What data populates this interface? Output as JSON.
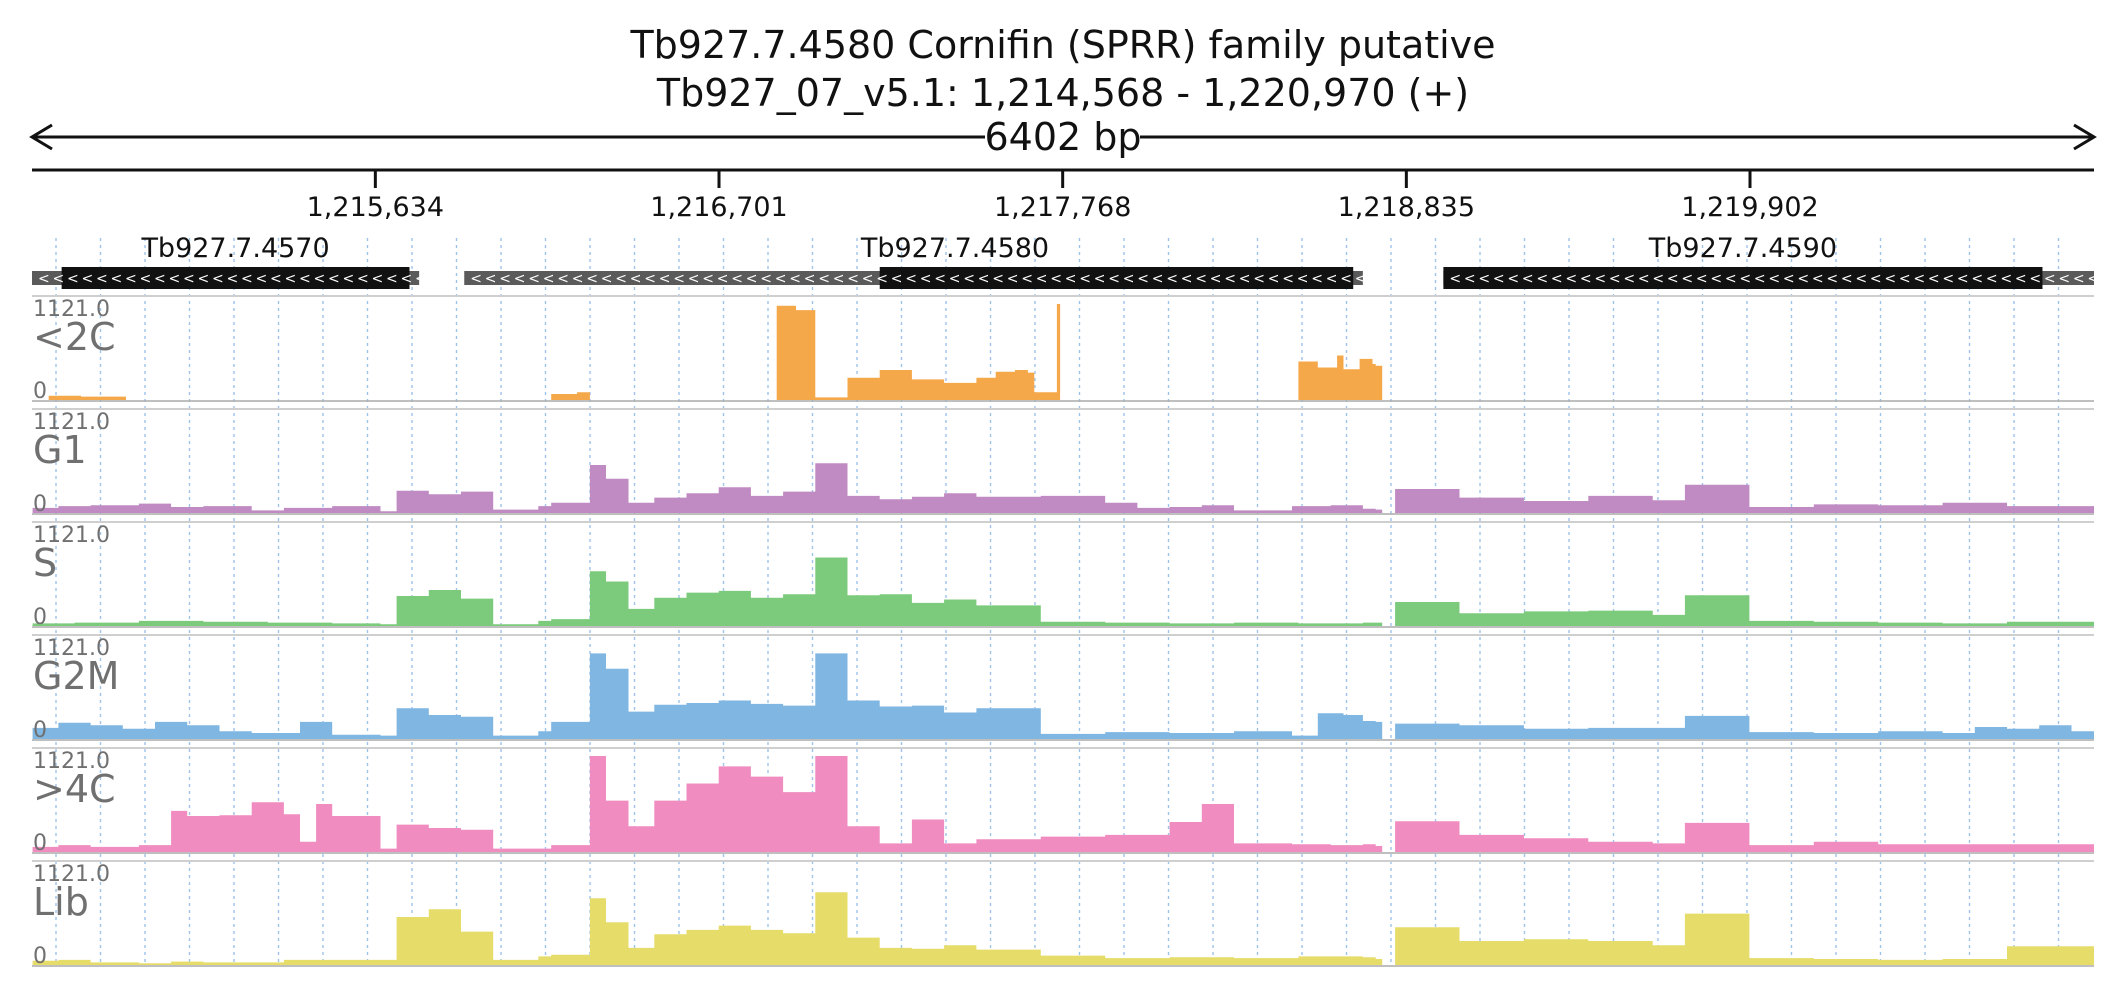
{
  "chart_data": {
    "type": "area",
    "title": "Tb927.7.4580  Cornifin (SPRR) family  putative",
    "subtitle": "Tb927_07_v5.1: 1,214,568 - 1,220,970 (+)",
    "span_label": "6402 bp",
    "x_range": [
      1214568,
      1220970
    ],
    "x_ticks": [
      1215634,
      1216701,
      1217768,
      1218835,
      1219902
    ],
    "x_tick_labels": [
      "1,215,634",
      "1,216,701",
      "1,217,768",
      "1,218,835",
      "1,219,902"
    ],
    "genes": [
      {
        "name": "Tb927.7.4570",
        "strand": "-",
        "utr_start": 1214568,
        "utr_end": 1215770,
        "cds_start": 1214660,
        "cds_end": 1215740
      },
      {
        "name": "Tb927.7.4580",
        "strand": "-",
        "utr_start": 1215910,
        "utr_end": 1218700,
        "cds_start": 1217200,
        "cds_end": 1218670
      },
      {
        "name": "Tb927.7.4590",
        "strand": "-",
        "utr_start": 1218950,
        "utr_end": 1220970,
        "cds_start": 1218950,
        "cds_end": 1220810
      }
    ],
    "y_max_label": "1121.0",
    "y_min_label": "0",
    "ylim": [
      0,
      1121
    ],
    "series": [
      {
        "name": "<2C",
        "color": "#f5a84a",
        "x": [
          1214570,
          1214600,
          1214620,
          1214660,
          1214720,
          1214820,
          1214860,
          1215000,
          1216000,
          1216140,
          1216180,
          1216200,
          1216260,
          1216300,
          1216850,
          1216880,
          1216940,
          1217000,
          1217100,
          1217200,
          1217300,
          1217400,
          1217500,
          1217560,
          1217620,
          1217660,
          1217680,
          1217750,
          1217760,
          1218480,
          1218500,
          1218560,
          1218620,
          1218640,
          1218690,
          1218730,
          1218740,
          1218760,
          1219000,
          1220970
        ],
        "values": [
          0,
          0,
          50,
          50,
          40,
          40,
          0,
          0,
          0,
          0,
          70,
          70,
          90,
          0,
          0,
          1100,
          1050,
          30,
          260,
          350,
          240,
          200,
          260,
          330,
          350,
          320,
          90,
          1121,
          0,
          0,
          450,
          380,
          520,
          360,
          480,
          420,
          400,
          0,
          0,
          0
        ]
      },
      {
        "name": "G1",
        "color": "#c08ac2",
        "x": [
          1214570,
          1214650,
          1214750,
          1214900,
          1215000,
          1215100,
          1215250,
          1215350,
          1215500,
          1215650,
          1215700,
          1215800,
          1215900,
          1216000,
          1216140,
          1216180,
          1216300,
          1216350,
          1216420,
          1216500,
          1216600,
          1216700,
          1216800,
          1216900,
          1217000,
          1217100,
          1217200,
          1217300,
          1217400,
          1217500,
          1217700,
          1217900,
          1218000,
          1218100,
          1218200,
          1218300,
          1218480,
          1218600,
          1218700,
          1218740,
          1218760,
          1218800,
          1219000,
          1219200,
          1219400,
          1219600,
          1219700,
          1219900,
          1220100,
          1220300,
          1220500,
          1220700,
          1220970
        ],
        "values": [
          60,
          80,
          90,
          110,
          70,
          80,
          30,
          60,
          80,
          20,
          260,
          220,
          250,
          40,
          80,
          120,
          560,
          400,
          120,
          180,
          230,
          300,
          200,
          250,
          580,
          200,
          160,
          190,
          230,
          190,
          200,
          120,
          60,
          70,
          90,
          30,
          80,
          90,
          50,
          40,
          0,
          280,
          180,
          140,
          200,
          150,
          330,
          70,
          100,
          90,
          120,
          80,
          120
        ]
      },
      {
        "name": "S",
        "color": "#7ccb7c",
        "x": [
          1214570,
          1214700,
          1214900,
          1215100,
          1215300,
          1215500,
          1215650,
          1215700,
          1215800,
          1215900,
          1216000,
          1216140,
          1216180,
          1216300,
          1216350,
          1216420,
          1216500,
          1216600,
          1216700,
          1216800,
          1216900,
          1217000,
          1217100,
          1217200,
          1217300,
          1217400,
          1217500,
          1217700,
          1217900,
          1218100,
          1218300,
          1218500,
          1218700,
          1218740,
          1218760,
          1218800,
          1219000,
          1219200,
          1219400,
          1219600,
          1219700,
          1219900,
          1220100,
          1220300,
          1220500,
          1220700,
          1220970
        ],
        "values": [
          30,
          40,
          60,
          50,
          40,
          30,
          20,
          350,
          420,
          320,
          20,
          60,
          80,
          640,
          520,
          200,
          330,
          390,
          410,
          330,
          370,
          800,
          360,
          370,
          270,
          310,
          240,
          50,
          40,
          30,
          40,
          30,
          40,
          40,
          0,
          280,
          150,
          170,
          180,
          130,
          360,
          60,
          50,
          40,
          30,
          50,
          30
        ]
      },
      {
        "name": "G2M",
        "color": "#7fb6e2",
        "x": [
          1214570,
          1214650,
          1214750,
          1214850,
          1214950,
          1215050,
          1215150,
          1215250,
          1215400,
          1215500,
          1215650,
          1215700,
          1215800,
          1215900,
          1216000,
          1216140,
          1216180,
          1216300,
          1216350,
          1216420,
          1216500,
          1216600,
          1216700,
          1216800,
          1216900,
          1217000,
          1217100,
          1217200,
          1217300,
          1217400,
          1217500,
          1217700,
          1217900,
          1218100,
          1218300,
          1218480,
          1218560,
          1218640,
          1218700,
          1218740,
          1218760,
          1218800,
          1219000,
          1219200,
          1219400,
          1219600,
          1219700,
          1219900,
          1220100,
          1220300,
          1220500,
          1220600,
          1220700,
          1220800,
          1220900,
          1220970
        ],
        "values": [
          130,
          190,
          160,
          120,
          200,
          160,
          90,
          70,
          200,
          50,
          40,
          360,
          280,
          260,
          40,
          90,
          200,
          1000,
          820,
          320,
          400,
          420,
          450,
          410,
          390,
          1000,
          450,
          380,
          390,
          310,
          360,
          60,
          80,
          70,
          90,
          40,
          300,
          280,
          210,
          200,
          0,
          180,
          160,
          120,
          130,
          130,
          270,
          80,
          70,
          90,
          70,
          140,
          120,
          160,
          90,
          100
        ]
      },
      {
        "name": ">4C",
        "color": "#f08cbf",
        "x": [
          1214570,
          1214650,
          1214750,
          1214900,
          1215000,
          1215050,
          1215150,
          1215250,
          1215350,
          1215400,
          1215450,
          1215500,
          1215650,
          1215700,
          1215800,
          1215900,
          1216000,
          1216140,
          1216180,
          1216300,
          1216350,
          1216420,
          1216500,
          1216600,
          1216700,
          1216800,
          1216900,
          1217000,
          1217100,
          1217200,
          1217300,
          1217400,
          1217500,
          1217700,
          1217900,
          1218100,
          1218200,
          1218300,
          1218480,
          1218600,
          1218700,
          1218740,
          1218760,
          1218800,
          1219000,
          1219200,
          1219400,
          1219600,
          1219700,
          1219900,
          1220100,
          1220300,
          1220500,
          1220700,
          1220970
        ],
        "values": [
          60,
          80,
          60,
          80,
          480,
          420,
          430,
          580,
          440,
          120,
          560,
          420,
          40,
          320,
          280,
          260,
          40,
          40,
          80,
          1121,
          600,
          300,
          600,
          800,
          1000,
          880,
          700,
          1121,
          300,
          100,
          380,
          100,
          150,
          180,
          200,
          350,
          560,
          100,
          90,
          80,
          90,
          70,
          0,
          360,
          200,
          160,
          120,
          100,
          340,
          80,
          120,
          90,
          90,
          90,
          40
        ]
      },
      {
        "name": "Lib",
        "color": "#e6dc6a",
        "x": [
          1214570,
          1214650,
          1214750,
          1214900,
          1215000,
          1215100,
          1215250,
          1215350,
          1215500,
          1215650,
          1215700,
          1215800,
          1215900,
          1216000,
          1216140,
          1216180,
          1216300,
          1216350,
          1216420,
          1216500,
          1216600,
          1216700,
          1216800,
          1216900,
          1217000,
          1217100,
          1217200,
          1217300,
          1217400,
          1217500,
          1217700,
          1217900,
          1218100,
          1218300,
          1218500,
          1218700,
          1218740,
          1218760,
          1218800,
          1219000,
          1219200,
          1219400,
          1219600,
          1219700,
          1219900,
          1220100,
          1220300,
          1220500,
          1220700,
          1220970
        ],
        "values": [
          50,
          60,
          30,
          20,
          40,
          30,
          30,
          60,
          60,
          60,
          560,
          650,
          390,
          60,
          100,
          120,
          780,
          500,
          200,
          360,
          410,
          460,
          410,
          370,
          850,
          320,
          200,
          190,
          230,
          180,
          110,
          80,
          90,
          80,
          100,
          90,
          70,
          0,
          440,
          280,
          300,
          280,
          230,
          600,
          80,
          70,
          60,
          70,
          220,
          110
        ]
      }
    ],
    "grid": true,
    "legend": "none"
  }
}
